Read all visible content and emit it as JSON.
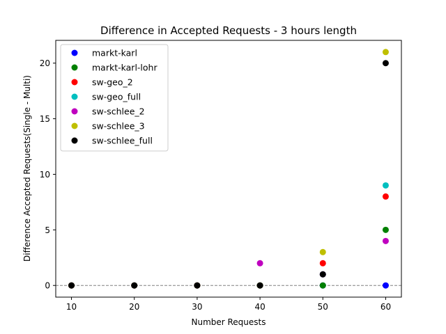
{
  "chart_data": {
    "type": "scatter",
    "title": "Difference in Accepted Requests - 3 hours length",
    "xlabel": "Number Requests",
    "ylabel": "Difference Accepted Requests(Single - Multi)",
    "xlim": [
      7.5,
      62.5
    ],
    "ylim": [
      -1.05,
      22.05
    ],
    "xticks": [
      10,
      20,
      30,
      40,
      50,
      60
    ],
    "yticks": [
      0,
      5,
      10,
      15,
      20
    ],
    "reference_line": {
      "y": 0,
      "style": "dashed",
      "color": "#808080"
    },
    "legend_position": "top-left",
    "grid": false,
    "x": [
      10,
      20,
      30,
      40,
      50,
      60
    ],
    "series": [
      {
        "name": "markt-karl",
        "color": "#0000ff",
        "values": [
          0,
          0,
          0,
          0,
          0,
          0
        ]
      },
      {
        "name": "markt-karl-lohr",
        "color": "#008000",
        "values": [
          0,
          0,
          0,
          0,
          0,
          5
        ]
      },
      {
        "name": "sw-geo_2",
        "color": "#ff0000",
        "values": [
          0,
          0,
          0,
          0,
          2,
          8
        ]
      },
      {
        "name": "sw-geo_full",
        "color": "#00bfbf",
        "values": [
          0,
          0,
          0,
          0,
          1,
          9
        ]
      },
      {
        "name": "sw-schlee_2",
        "color": "#bf00bf",
        "values": [
          0,
          0,
          0,
          2,
          1,
          4
        ]
      },
      {
        "name": "sw-schlee_3",
        "color": "#bfbf00",
        "values": [
          0,
          0,
          0,
          0,
          3,
          21
        ]
      },
      {
        "name": "sw-schlee_full",
        "color": "#000000",
        "values": [
          0,
          0,
          0,
          0,
          1,
          20
        ]
      }
    ]
  }
}
